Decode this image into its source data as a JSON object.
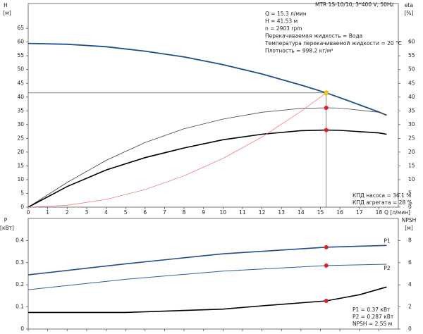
{
  "chart_data": [
    {
      "type": "line",
      "title": "MTR 1S-10/10, 3*400 V, 50Hz",
      "annotations": [
        "Q = 15.3 л/мин",
        "H = 41.53 м",
        "n = 2903 rpm",
        "Перекачиваемая жидкость = Вода",
        "Температура перекачиваемой жидкости = 20 °C",
        "Плотность = 998.2 кг/м³"
      ],
      "notes": [
        "КПД насоса = 36.1 %",
        "КПД агрегата = 28 %"
      ],
      "ylabel": "H",
      "ylabel_unit": "[м]",
      "y2label": "eta",
      "y2label_unit": "[%]",
      "xlabel": "Q [л/мин]",
      "xlim": [
        0,
        19
      ],
      "xticks": [
        0,
        1,
        2,
        3,
        4,
        5,
        6,
        7,
        8,
        9,
        10,
        11,
        12,
        13,
        14,
        15,
        16,
        17,
        18
      ],
      "ylim": [
        0,
        74
      ],
      "yticks": [
        0,
        5,
        10,
        15,
        20,
        25,
        30,
        35,
        40,
        45,
        50,
        55,
        60,
        65
      ],
      "y2lim": [
        0,
        74
      ],
      "y2ticks": [
        0,
        5,
        10,
        15,
        20,
        25,
        30,
        35,
        40,
        45,
        50,
        55,
        60
      ],
      "grid": false,
      "crosshair": {
        "x": 15.3,
        "y": 41.53
      },
      "series": [
        {
          "color": "#1f4e8c",
          "width": 1.8,
          "x": [
            0,
            2,
            4,
            6,
            8,
            10,
            12,
            14,
            15.3,
            16,
            18,
            18.4
          ],
          "values": [
            59.5,
            59.2,
            58.3,
            56.7,
            54.6,
            51.8,
            48.4,
            44.4,
            41.53,
            39.8,
            34.6,
            33.4
          ]
        },
        {
          "color": "#444444",
          "width": 0.8,
          "axis": "y2",
          "x": [
            0,
            2,
            4,
            6,
            8,
            10,
            12,
            14,
            15.3,
            16,
            18,
            18.4
          ],
          "values": [
            0,
            9,
            17,
            23.5,
            28.5,
            32,
            34.5,
            35.9,
            36.1,
            36,
            34.5,
            33.5
          ]
        },
        {
          "color": "#000000",
          "width": 1.6,
          "axis": "y2",
          "x": [
            0,
            2,
            4,
            6,
            8,
            10,
            12,
            14,
            15.3,
            16,
            18,
            18.4
          ],
          "values": [
            0,
            7.5,
            13.5,
            18,
            21.5,
            24.5,
            26.5,
            27.8,
            28,
            27.9,
            27,
            26.5
          ]
        },
        {
          "color": "#f08080",
          "width": 0.8,
          "x": [
            0,
            2,
            4,
            6,
            8,
            10,
            12,
            14,
            15.3
          ],
          "values": [
            0,
            0.7,
            2.8,
            6.4,
            11.4,
            17.7,
            25.5,
            34.8,
            41.53
          ]
        }
      ],
      "points": [
        {
          "x": 15.3,
          "y": 41.53,
          "color": "#ffcc00"
        },
        {
          "x": 15.3,
          "y": 36.1,
          "color": "#e02020",
          "axis": "y2"
        },
        {
          "x": 15.3,
          "y": 28,
          "color": "#e02020",
          "axis": "y2"
        }
      ]
    },
    {
      "type": "line",
      "notes": [
        "P1 = 0.37 кВт",
        "P2 = 0.287 кВт",
        "NPSH = 2.55 м"
      ],
      "ylabel": "P",
      "ylabel_unit": "[кВт]",
      "y2label": "NPSH",
      "y2label_unit": "[м]",
      "xlim": [
        0,
        19
      ],
      "xticks": [
        0,
        1,
        2,
        3,
        4,
        5,
        6,
        7,
        8,
        9,
        10,
        11,
        12,
        13,
        14,
        15,
        16,
        17,
        18
      ],
      "ylim": [
        0,
        0.5
      ],
      "yticks": [
        0,
        0.1,
        0.2,
        0.3,
        0.4
      ],
      "y2lim": [
        0,
        10
      ],
      "y2ticks": [
        0,
        2,
        4,
        6,
        8
      ],
      "grid": false,
      "series": [
        {
          "name": "P1",
          "color": "#1f4e8c",
          "width": 1.6,
          "x": [
            0,
            5,
            10,
            15.3,
            18.4
          ],
          "values": [
            0.245,
            0.295,
            0.34,
            0.37,
            0.378
          ]
        },
        {
          "name": "P2",
          "color": "#2f5f9f",
          "width": 1,
          "x": [
            0,
            5,
            10,
            15.3,
            18.4
          ],
          "values": [
            0.178,
            0.225,
            0.262,
            0.287,
            0.293
          ]
        },
        {
          "color": "#000000",
          "width": 1.6,
          "axis": "y2",
          "x": [
            0,
            5,
            10,
            12,
            15.3,
            17,
            18.4
          ],
          "values": [
            1.5,
            1.5,
            1.8,
            2.1,
            2.55,
            3.1,
            3.8
          ]
        }
      ],
      "points": [
        {
          "x": 15.3,
          "y": 0.37,
          "color": "#e02020"
        },
        {
          "x": 15.3,
          "y": 0.287,
          "color": "#e02020"
        },
        {
          "x": 15.3,
          "y": 2.55,
          "color": "#e02020",
          "axis": "y2"
        }
      ]
    }
  ]
}
